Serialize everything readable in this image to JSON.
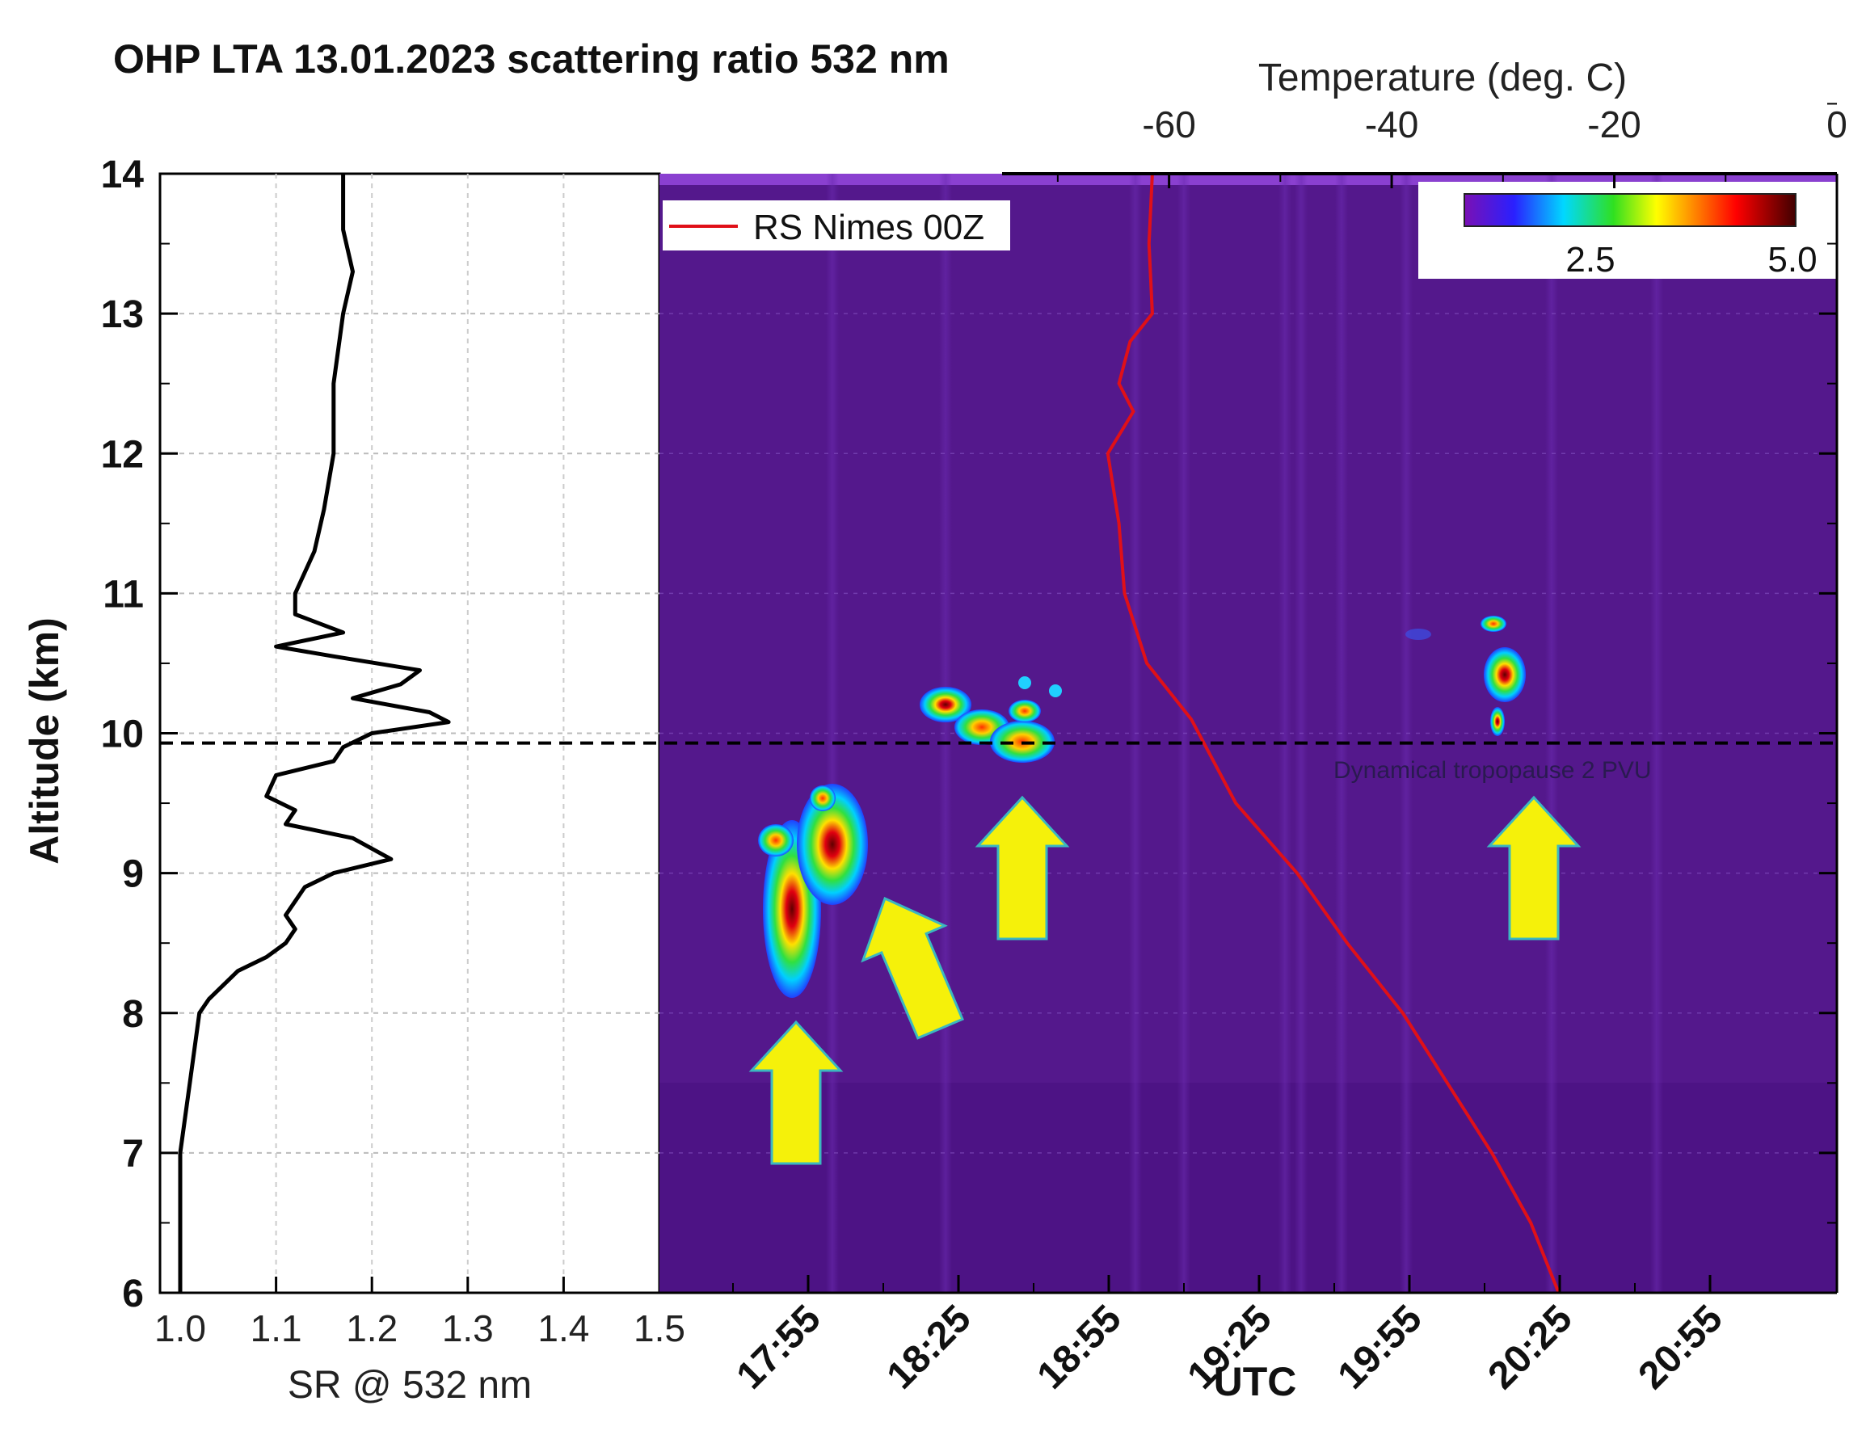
{
  "chart_data": [
    {
      "type": "line",
      "title": "OHP LTA 13.01.2023 scattering ratio 532 nm",
      "xlabel": "SR @ 532 nm",
      "ylabel": "Altitude (km)",
      "xlim": [
        1.0,
        1.5
      ],
      "ylim": [
        6,
        14
      ],
      "xticks": [
        "1.0",
        "1.1",
        "1.2",
        "1.3",
        "1.4",
        "1.5"
      ],
      "yticks": [
        "6",
        "7",
        "8",
        "9",
        "10",
        "11",
        "12",
        "13",
        "14"
      ],
      "grid": true,
      "series": [
        {
          "color": "#000000",
          "points": [
            [
              1.0,
              6.0
            ],
            [
              1.0,
              6.5
            ],
            [
              1.0,
              7.0
            ],
            [
              1.01,
              7.5
            ],
            [
              1.02,
              8.0
            ],
            [
              1.03,
              8.1
            ],
            [
              1.06,
              8.3
            ],
            [
              1.09,
              8.4
            ],
            [
              1.11,
              8.5
            ],
            [
              1.12,
              8.6
            ],
            [
              1.11,
              8.7
            ],
            [
              1.12,
              8.8
            ],
            [
              1.13,
              8.9
            ],
            [
              1.16,
              9.0
            ],
            [
              1.22,
              9.1
            ],
            [
              1.18,
              9.25
            ],
            [
              1.11,
              9.35
            ],
            [
              1.12,
              9.45
            ],
            [
              1.09,
              9.55
            ],
            [
              1.1,
              9.7
            ],
            [
              1.16,
              9.8
            ],
            [
              1.17,
              9.9
            ],
            [
              1.2,
              10.0
            ],
            [
              1.28,
              10.08
            ],
            [
              1.26,
              10.15
            ],
            [
              1.18,
              10.25
            ],
            [
              1.23,
              10.35
            ],
            [
              1.25,
              10.45
            ],
            [
              1.16,
              10.55
            ],
            [
              1.1,
              10.62
            ],
            [
              1.17,
              10.72
            ],
            [
              1.12,
              10.85
            ],
            [
              1.12,
              11.0
            ],
            [
              1.14,
              11.3
            ],
            [
              1.15,
              11.6
            ],
            [
              1.16,
              12.0
            ],
            [
              1.16,
              12.5
            ],
            [
              1.17,
              13.0
            ],
            [
              1.18,
              13.3
            ],
            [
              1.17,
              13.6
            ],
            [
              1.17,
              14.0
            ]
          ]
        }
      ],
      "hline": {
        "y": 9.93,
        "style": "dashed"
      }
    },
    {
      "type": "heatmap",
      "xlabel": "UTC",
      "x2label": "Temperature (deg. C)",
      "xticks": [
        "17:55",
        "18:25",
        "18:55",
        "19:25",
        "19:55",
        "20:25",
        "20:55"
      ],
      "x2ticks": [
        "-60",
        "-40",
        "-20",
        "0"
      ],
      "x2lim": [
        -75,
        0
      ],
      "ylim": [
        6,
        14
      ],
      "colorbar": {
        "range": [
          1.0,
          5.0
        ],
        "ticks": [
          "2.5",
          "5.0"
        ]
      },
      "legend": {
        "label": "RS Nimes 00Z",
        "color": "#e01018",
        "position": "top-left"
      },
      "hline": {
        "y": 9.93,
        "label": "Dynamical tropopause 2 PVU"
      },
      "temperature_profile": [
        [
          -61.5,
          14.0
        ],
        [
          -61.8,
          13.5
        ],
        [
          -61.5,
          13.0
        ],
        [
          -63.5,
          12.8
        ],
        [
          -64.5,
          12.5
        ],
        [
          -63.2,
          12.3
        ],
        [
          -65.5,
          12.0
        ],
        [
          -64.5,
          11.5
        ],
        [
          -64.0,
          11.0
        ],
        [
          -62.0,
          10.5
        ],
        [
          -58.0,
          10.1
        ],
        [
          -54.0,
          9.5
        ],
        [
          -48.5,
          9.0
        ],
        [
          -44.0,
          8.5
        ],
        [
          -39.0,
          8.0
        ],
        [
          -35.0,
          7.5
        ],
        [
          -31.0,
          7.0
        ],
        [
          -27.5,
          6.5
        ],
        [
          -25.0,
          6.0
        ]
      ],
      "features": [
        {
          "time": "17:55",
          "altitude_range": [
            8.2,
            9.6
          ],
          "max_sr": 5.0
        },
        {
          "time": "18:35",
          "altitude_range": [
            9.8,
            10.35
          ],
          "max_sr": 4.5
        },
        {
          "time": "20:25",
          "altitude_range": [
            10.0,
            10.8
          ],
          "max_sr": 5.0
        }
      ],
      "arrows": [
        {
          "target": "17:55 cloud, lower",
          "direction": "up"
        },
        {
          "target": "17:55 cloud, upper",
          "direction": "up-left"
        },
        {
          "target": "18:35 cloud",
          "direction": "up"
        },
        {
          "target": "20:25 cloud",
          "direction": "up"
        }
      ]
    }
  ],
  "colors": {
    "arrow": "#f5f10a",
    "background": "#54188c",
    "profile": "#000000",
    "radiosonde": "#e01018"
  }
}
